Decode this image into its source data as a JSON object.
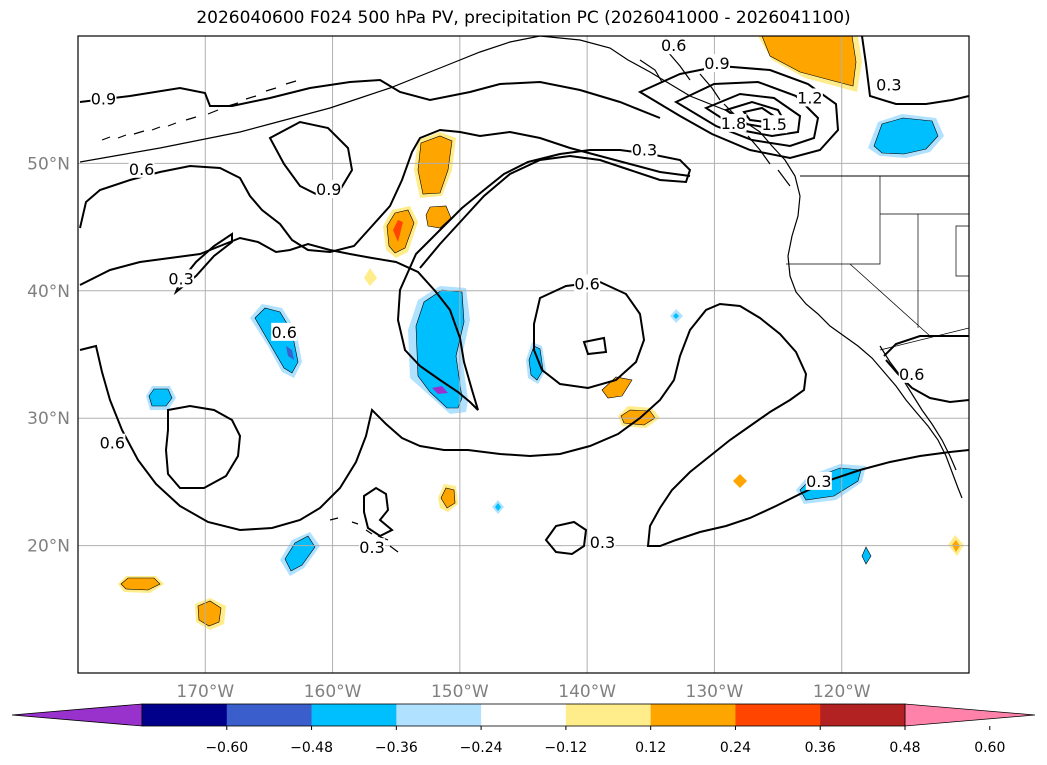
{
  "chart_data": {
    "type": "contour-map",
    "title": "2026040600 F024 500 hPa PV, precipitation PC (2026041000 - 2026041100)",
    "lon_range": [
      -180,
      -110
    ],
    "lat_range": [
      10,
      60
    ],
    "x_ticks": [
      {
        "lon": -170,
        "label": "170°W"
      },
      {
        "lon": -160,
        "label": "160°W"
      },
      {
        "lon": -150,
        "label": "150°W"
      },
      {
        "lon": -140,
        "label": "140°W"
      },
      {
        "lon": -130,
        "label": "130°W"
      },
      {
        "lon": -120,
        "label": "120°W"
      }
    ],
    "y_ticks": [
      {
        "lat": 20,
        "label": "20°N"
      },
      {
        "lat": 30,
        "label": "30°N"
      },
      {
        "lat": 40,
        "label": "40°N"
      },
      {
        "lat": 50,
        "label": "50°N"
      }
    ],
    "grid": true,
    "contour_labels": [
      {
        "text": "0.9",
        "lon": -178.0,
        "lat": 55.0
      },
      {
        "text": "0.6",
        "lon": -175.0,
        "lat": 49.5
      },
      {
        "text": "0.9",
        "lon": -160.3,
        "lat": 47.9
      },
      {
        "text": "0.3",
        "lon": -171.9,
        "lat": 40.9
      },
      {
        "text": "0.6",
        "lon": -163.8,
        "lat": 36.7
      },
      {
        "text": "0.6",
        "lon": -177.3,
        "lat": 28.0
      },
      {
        "text": "0.3",
        "lon": -156.9,
        "lat": 19.8
      },
      {
        "text": "0.6",
        "lon": -140.0,
        "lat": 40.5
      },
      {
        "text": "0.3",
        "lon": -138.8,
        "lat": 20.2
      },
      {
        "text": "0.3",
        "lon": -135.5,
        "lat": 51.0
      },
      {
        "text": "0.6",
        "lon": -133.2,
        "lat": 59.2
      },
      {
        "text": "0.9",
        "lon": -129.8,
        "lat": 57.8
      },
      {
        "text": "1.2",
        "lon": -122.5,
        "lat": 55.1
      },
      {
        "text": "1.5",
        "lon": -125.3,
        "lat": 53.0
      },
      {
        "text": "1.8",
        "lon": -128.5,
        "lat": 53.1
      },
      {
        "text": "0.3",
        "lon": -116.3,
        "lat": 56.1
      },
      {
        "text": "0.3",
        "lon": -121.8,
        "lat": 25.0
      },
      {
        "text": "0.6",
        "lon": -114.5,
        "lat": 33.4
      }
    ],
    "colorbar": {
      "ticks": [
        "−0.60",
        "−0.48",
        "−0.36",
        "−0.24",
        "−0.12",
        "0.12",
        "0.24",
        "0.36",
        "0.48",
        "0.60"
      ],
      "colors": [
        "#9932cc",
        "#00008b",
        "#3a5fcd",
        "#00bfff",
        "#b0e2ff",
        "#ffffff",
        "#ffec8b",
        "#ffa500",
        "#ff4500",
        "#b22222",
        "#ff82ab"
      ],
      "extend": "both"
    },
    "precip_features": [
      {
        "cls": "pos",
        "color": "#ffa500",
        "desc": "NE corner"
      },
      {
        "cls": "neg",
        "color": "#00bfff",
        "desc": "near 117W 53N"
      },
      {
        "cls": "pos",
        "color": "#ffa500",
        "desc": "152W 48N"
      },
      {
        "cls": "pos",
        "color": "#ff4500",
        "desc": "155W 44N"
      },
      {
        "cls": "neg",
        "color": "#00bfff",
        "desc": "150W 35N"
      },
      {
        "cls": "neg",
        "color": "#00bfff",
        "desc": "164W 35N"
      },
      {
        "cls": "neg",
        "color": "#00bfff",
        "desc": "123W 25N"
      }
    ]
  }
}
